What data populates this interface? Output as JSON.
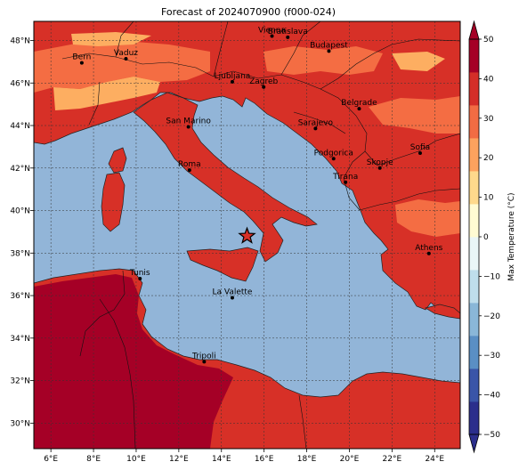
{
  "title": "Forecast of 2024070900 (f000-024)",
  "colorbar": {
    "label": "Max Temperature (°C)",
    "ticks": [
      "50",
      "40",
      "30",
      "20",
      "10",
      "0",
      "−10",
      "−20",
      "−30",
      "−40",
      "−50"
    ],
    "range": [
      -50,
      50
    ],
    "colors": [
      "#2b2e8c",
      "#3a55a8",
      "#5a8fc4",
      "#8ab7d8",
      "#bfdeec",
      "#eaf6f7",
      "#fffbd3",
      "#fed98c",
      "#fda25e",
      "#f26c43",
      "#d42e28",
      "#a50026"
    ]
  },
  "map": {
    "lon_range": [
      5.2,
      25.2
    ],
    "lat_range": [
      28.8,
      48.9
    ],
    "x_ticks": [
      "6°E",
      "8°E",
      "10°E",
      "12°E",
      "14°E",
      "16°E",
      "18°E",
      "20°E",
      "22°E",
      "24°E"
    ],
    "y_ticks": [
      "48°N",
      "46°N",
      "44°N",
      "42°N",
      "40°N",
      "38°N",
      "36°N",
      "34°N",
      "32°N",
      "30°N"
    ],
    "sea_color": "#92b5d8",
    "land_colors": {
      "hot": "#d73027",
      "warm": "#f46d43",
      "mild": "#fdae61",
      "very_hot": "#a50026"
    },
    "gridlines": true,
    "marker": {
      "symbol": "star",
      "lon": 15.2,
      "lat": 38.8
    }
  },
  "cities": [
    {
      "name": "Bern",
      "lon": 7.45,
      "lat": 46.95
    },
    {
      "name": "Vaduz",
      "lon": 9.52,
      "lat": 47.14
    },
    {
      "name": "Vienna",
      "lon": 16.37,
      "lat": 48.21
    },
    {
      "name": "Bratislava",
      "lon": 17.11,
      "lat": 48.15
    },
    {
      "name": "Budapest",
      "lon": 19.04,
      "lat": 47.5
    },
    {
      "name": "Ljubljana",
      "lon": 14.51,
      "lat": 46.06
    },
    {
      "name": "Zagreb",
      "lon": 15.98,
      "lat": 45.81
    },
    {
      "name": "Belgrade",
      "lon": 20.46,
      "lat": 44.79
    },
    {
      "name": "San Marino",
      "lon": 12.45,
      "lat": 43.94
    },
    {
      "name": "Sarajevo",
      "lon": 18.41,
      "lat": 43.86
    },
    {
      "name": "Sofia",
      "lon": 23.32,
      "lat": 42.7
    },
    {
      "name": "Podgorica",
      "lon": 19.26,
      "lat": 42.44
    },
    {
      "name": "Skopje",
      "lon": 21.43,
      "lat": 42.0
    },
    {
      "name": "Roma",
      "lon": 12.5,
      "lat": 41.9
    },
    {
      "name": "Tirana",
      "lon": 19.82,
      "lat": 41.33
    },
    {
      "name": "Athens",
      "lon": 23.73,
      "lat": 37.98
    },
    {
      "name": "Tunis",
      "lon": 10.18,
      "lat": 36.8
    },
    {
      "name": "La Valette",
      "lon": 14.51,
      "lat": 35.9
    },
    {
      "name": "Tripoli",
      "lon": 13.19,
      "lat": 32.89
    }
  ]
}
